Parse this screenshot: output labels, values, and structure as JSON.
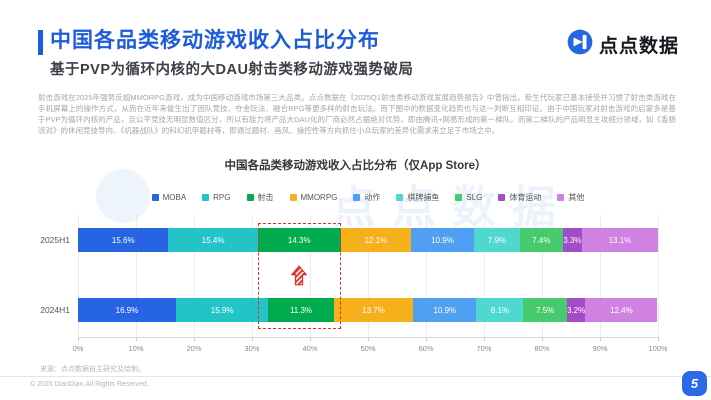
{
  "header": {
    "title": "中国各品类移动游戏收入占比分布",
    "subtitle": "基于PVP为循环内核的大DAU射击类移动游戏强势破局",
    "logo_text": "点点数据"
  },
  "body_paragraph": "射击游戏在2025年强势反超MMORPG游戏，成为中国移动游戏市场第三大品类。点点数据在《2025Q1射击类移动游戏发展趋势报告》中曾指出，新生代玩家已基本接受并习惯了射击类游戏在手机屏幕上的操作方式，从而在近年来催生出了团队竞技、夺金玩法、融合RPG等更多样的射击玩法。而下图中的数据变化趋势也与这一判断互相印证。由于中国玩家对射击游戏的启蒙多是基于PVP为循环内核的产品，且公平竞技无明显数值区分，所以有能力将产品大DAU化的厂商必然占据绝对优势，即由腾讯+网易形成的第一梯队。而第二梯队的产品明显主攻细分领域，如《香肠派对》的休闲竞技导向、《机器战队》的科幻机甲题材等，即通过题材、画风、操控性等方向抓住小众玩家的差异化需求来立足于市场之中。",
  "watermark_text": "点点数据",
  "chart_data": {
    "type": "bar",
    "orientation": "horizontal-stacked",
    "title": "中国各品类移动游戏收入占比分布（仅App Store）",
    "categories": [
      "MOBA",
      "RPG",
      "射击",
      "MMORPG",
      "动作",
      "棋牌捕鱼",
      "SLG",
      "体育运动",
      "其他"
    ],
    "colors": [
      "#2764e4",
      "#22c4c7",
      "#00ac4d",
      "#f8af1c",
      "#4fa0f2",
      "#4fd8d0",
      "#47ca6e",
      "#a44bc8",
      "#cf82e2"
    ],
    "series_unit": "%",
    "rows": [
      {
        "label": "2025H1",
        "values": [
          15.6,
          15.4,
          14.3,
          12.1,
          10.9,
          7.9,
          7.4,
          3.3,
          13.1
        ]
      },
      {
        "label": "2024H1",
        "values": [
          16.9,
          15.9,
          11.3,
          13.7,
          10.9,
          8.1,
          7.5,
          3.2,
          12.4
        ]
      }
    ],
    "x_ticks": [
      "0%",
      "10%",
      "20%",
      "30%",
      "40%",
      "50%",
      "60%",
      "70%",
      "80%",
      "90%",
      "100%"
    ],
    "xlim": [
      0,
      100
    ],
    "grid": true,
    "legend_position": "top",
    "highlight": {
      "category": "射击",
      "color": "#e03028",
      "arrow": "up-arrow-increase"
    }
  },
  "footer": {
    "source_note": "来源：点点数据自主研究及绘制。",
    "copyright": "© 2025 DianDian.All Rights Reserved.",
    "page_number": "5"
  }
}
